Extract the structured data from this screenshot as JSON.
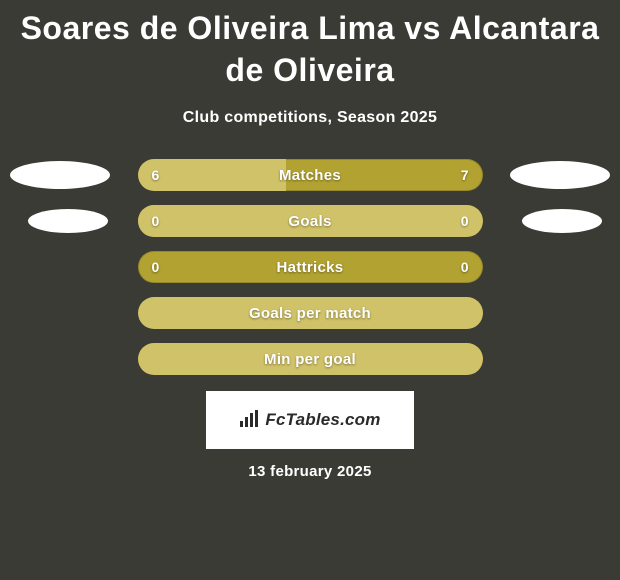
{
  "colors": {
    "background": "#3b3b35",
    "text": "#ffffff",
    "bar_base": "#b2a231",
    "bar_fill": "#d0c268",
    "badge": "#ffffff",
    "footer_bg": "#ffffff",
    "footer_text": "#2a2a2a"
  },
  "title": "Soares de Oliveira Lima vs Alcantara de Oliveira",
  "subtitle": "Club competitions, Season 2025",
  "rows": [
    {
      "label": "Matches",
      "left_value": "6",
      "right_value": "7",
      "left_pct": 43,
      "right_pct": 57,
      "show_values": true,
      "badge": "large"
    },
    {
      "label": "Goals",
      "left_value": "0",
      "right_value": "0",
      "left_pct": 0,
      "right_pct": 100,
      "fill_side": "right",
      "show_values": true,
      "badge": "small"
    },
    {
      "label": "Hattricks",
      "left_value": "0",
      "right_value": "0",
      "left_pct": 0,
      "right_pct": 0,
      "show_values": true,
      "badge": "none"
    },
    {
      "label": "Goals per match",
      "left_value": "",
      "right_value": "",
      "left_pct": 100,
      "right_pct": 0,
      "fill_side": "full",
      "show_values": false,
      "badge": "none"
    },
    {
      "label": "Min per goal",
      "left_value": "",
      "right_value": "",
      "left_pct": 100,
      "right_pct": 0,
      "fill_side": "full",
      "show_values": false,
      "badge": "none"
    }
  ],
  "footer": {
    "logo_text": "FcTables.com",
    "date": "13 february 2025"
  }
}
